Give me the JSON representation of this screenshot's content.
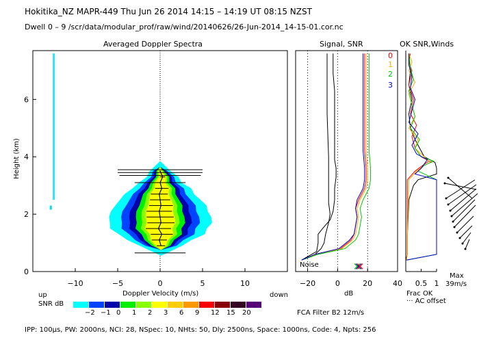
{
  "header": {
    "line1": "Hokitika_NZ   MAPR-449   Thu Jun 26 2014 14:15 – 14:19 UT 08:15 NZST",
    "line2": "Dwell   0 –  9   /scr/data/modular_prof/raw/wind/20140626/26-Jun-2014_14-15-01.cor.nc"
  },
  "panels": {
    "spectra_title": "Averaged Doppler Spectra",
    "signal_title": "Signal, SNR",
    "ok_title": "OK SNR,Winds"
  },
  "labels": {
    "y_axis": "Height (km)",
    "x_axis": "Doppler Velocity (m/s)",
    "up": "up",
    "down": "down",
    "db": "dB",
    "noise": "Noise",
    "frac_ok": "Frac OK",
    "ac_offset": "··· AC offset",
    "max": "Max",
    "max_value": "39m/s",
    "snr_db": "SNR dB",
    "fca": "FCA Filter B2 12m/s",
    "footer": "IPP: 100µs,  PW: 2000ns,  NCI:  28,  NSpec: 10,  NHts: 50,  Dly: 2500ns,  Space: 1000ns,  Code: 4,  Npts: 256"
  },
  "beam_legend": [
    {
      "label": "0",
      "color": "#ff0000"
    },
    {
      "label": "1",
      "color": "#ffaa00"
    },
    {
      "label": "2",
      "color": "#00cc00"
    },
    {
      "label": "3",
      "color": "#0000cc"
    }
  ],
  "snr_scale": {
    "colors": [
      "#00ffff",
      "#0044ff",
      "#0000aa",
      "#00ee00",
      "#88ff00",
      "#ffff00",
      "#ffcc00",
      "#ff9900",
      "#ff0000",
      "#880000",
      "#330022",
      "#550077"
    ],
    "labels": [
      "-2",
      "-1",
      "0",
      "1",
      "2",
      "3",
      "6",
      "9",
      "12",
      "15",
      "20"
    ]
  },
  "chart_data": [
    {
      "type": "heatmap",
      "title": "Averaged Doppler Spectra",
      "xlabel": "Doppler Velocity (m/s)",
      "ylabel": "Height (km)",
      "xlim": [
        -15,
        15
      ],
      "ylim": [
        0,
        7.7
      ],
      "x_ticks": [
        -10,
        -5,
        0,
        5,
        10
      ],
      "y_ticks": [
        0,
        2,
        4,
        6
      ],
      "mean_velocity_height": [
        0.9,
        1.1,
        1.3,
        1.5,
        1.7,
        1.9,
        2.1,
        2.3,
        2.5,
        2.7,
        2.9,
        3.1,
        3.3,
        3.5
      ],
      "mean_velocity": [
        0.1,
        -0.1,
        0.2,
        -0.2,
        0.1,
        0.0,
        -0.1,
        0.1,
        0.0,
        -0.1,
        0.2,
        0.0,
        0.3,
        0.0
      ],
      "core_halfwidth": [
        0.5,
        0.9,
        1.3,
        1.5,
        1.6,
        1.6,
        1.5,
        1.4,
        1.2,
        1.0,
        0.8,
        0.5,
        0.3,
        0.1
      ]
    },
    {
      "type": "line",
      "title": "Signal, SNR",
      "xlabel": "dB",
      "xlim": [
        -28,
        40
      ],
      "ylim": [
        0,
        7.7
      ],
      "x_ticks": [
        -20,
        0,
        20,
        40
      ],
      "series": [
        {
          "color": "#000000",
          "x": [
            -24,
            -14,
            -13,
            -13,
            -10,
            -5,
            -3,
            -2,
            -2,
            -1,
            -1,
            -2,
            -2,
            -2,
            -2,
            -2,
            -3,
            -3
          ],
          "y": [
            0.4,
            0.7,
            1.0,
            1.3,
            1.5,
            1.8,
            2.1,
            2.5,
            2.9,
            3.3,
            3.6,
            3.9,
            4.3,
            5.0,
            5.7,
            6.3,
            6.9,
            7.6
          ]
        },
        {
          "color": "#000000",
          "x": [
            -24,
            -15,
            -11,
            -9,
            -8,
            -6,
            -5,
            -6,
            -6,
            -6,
            -7,
            -7
          ],
          "y": [
            0.4,
            0.6,
            0.8,
            1.0,
            1.3,
            1.7,
            2.0,
            2.4,
            3.0,
            4.0,
            5.5,
            7.6
          ]
        },
        {
          "color": "#ff0000",
          "x": [
            -24,
            -15,
            2,
            9,
            11,
            12,
            13,
            12,
            14,
            18,
            19,
            19,
            18,
            18,
            18,
            18
          ],
          "y": [
            0.4,
            0.6,
            0.8,
            1.1,
            1.3,
            1.6,
            1.9,
            2.2,
            2.5,
            2.9,
            3.2,
            3.6,
            4.2,
            5.2,
            6.5,
            7.6
          ]
        },
        {
          "color": "#ffaa00",
          "x": [
            -24,
            -14,
            3,
            10,
            12,
            13,
            14,
            13,
            15,
            19,
            20,
            20,
            19,
            19,
            19,
            19
          ],
          "y": [
            0.4,
            0.6,
            0.8,
            1.1,
            1.3,
            1.6,
            1.9,
            2.2,
            2.5,
            2.9,
            3.2,
            3.6,
            4.2,
            5.2,
            6.5,
            7.6
          ]
        },
        {
          "color": "#00cc00",
          "x": [
            -24,
            -13,
            5,
            12,
            14,
            15,
            16,
            15,
            17,
            21,
            22,
            22,
            21,
            21,
            21,
            21
          ],
          "y": [
            0.4,
            0.6,
            0.8,
            1.1,
            1.3,
            1.6,
            1.9,
            2.2,
            2.5,
            2.9,
            3.2,
            3.6,
            4.2,
            5.2,
            6.5,
            7.6
          ]
        },
        {
          "color": "#0000cc",
          "x": [
            -24,
            -15,
            1,
            8,
            11,
            12,
            13,
            12,
            13,
            17,
            18,
            18,
            17,
            17,
            17,
            17
          ],
          "y": [
            0.4,
            0.6,
            0.8,
            1.1,
            1.3,
            1.6,
            1.9,
            2.2,
            2.5,
            2.9,
            3.2,
            3.6,
            4.2,
            5.2,
            6.5,
            7.6
          ]
        }
      ]
    },
    {
      "type": "line",
      "title": "OK SNR,Winds",
      "xlabel": "Frac OK",
      "xlim": [
        0,
        1
      ],
      "ylim": [
        0,
        7.7
      ],
      "x_ticks": [
        0.5,
        1
      ],
      "x_ticklabels": [
        "0.5",
        "1"
      ],
      "series": [
        {
          "color": "#000000",
          "x": [
            0.0,
            0.05,
            0.05,
            0.1,
            0.25,
            0.4,
            1.0,
            1.0,
            0.95,
            0.6,
            0.45,
            0.3,
            0.15,
            0.1,
            0.2,
            0.1,
            0.15,
            0.1
          ],
          "y": [
            0.4,
            0.6,
            1.2,
            2.5,
            3.0,
            3.2,
            3.4,
            3.6,
            3.8,
            4.0,
            4.3,
            4.6,
            5.0,
            5.5,
            6.0,
            6.5,
            7.0,
            7.6
          ]
        },
        {
          "color": "#ff0000",
          "x": [
            0.02,
            0.05,
            0.05,
            0.05,
            0.3,
            0.55,
            0.75,
            0.85,
            0.5,
            0.3,
            0.2,
            0.35,
            0.15,
            0.25,
            0.1,
            0.2,
            0.1,
            0.15
          ],
          "y": [
            0.4,
            0.6,
            1.2,
            3.2,
            3.5,
            3.7,
            3.85,
            3.8,
            4.0,
            4.3,
            4.7,
            5.1,
            5.5,
            6.0,
            6.5,
            7.0,
            7.3,
            7.6
          ]
        },
        {
          "color": "#ffaa00",
          "x": [
            0.02,
            0.05,
            0.05,
            0.1,
            0.35,
            0.6,
            0.8,
            0.6,
            0.3,
            0.4,
            0.1,
            0.3,
            0.2,
            0.1,
            0.3,
            0.1,
            0.2,
            0.1
          ],
          "y": [
            0.4,
            0.6,
            1.2,
            3.2,
            3.5,
            3.7,
            3.8,
            4.0,
            4.3,
            4.6,
            5.0,
            5.4,
            5.8,
            6.2,
            6.6,
            7.0,
            7.3,
            7.6
          ]
        },
        {
          "color": "#00cc00",
          "x": [
            0.02,
            1.0,
            1.0,
            1.0,
            0.4,
            0.6,
            0.9,
            0.5,
            0.3,
            0.45,
            0.15,
            0.3,
            0.2,
            0.1,
            0.25,
            0.15,
            0.1
          ],
          "y": [
            0.4,
            0.6,
            1.2,
            3.2,
            3.5,
            3.7,
            3.85,
            4.0,
            4.3,
            4.6,
            5.0,
            5.4,
            5.8,
            6.3,
            6.7,
            7.1,
            7.6
          ]
        },
        {
          "color": "#0000cc",
          "x": [
            0.02,
            1.0,
            1.0,
            1.0,
            0.3,
            0.5,
            0.7,
            0.35,
            0.2,
            0.4,
            0.1,
            0.2,
            0.3,
            0.15,
            0.2,
            0.1,
            0.1
          ],
          "y": [
            0.4,
            0.6,
            1.2,
            3.2,
            3.4,
            3.6,
            3.9,
            4.1,
            4.4,
            4.8,
            5.2,
            5.6,
            6.0,
            6.4,
            6.8,
            7.2,
            7.6
          ]
        }
      ]
    }
  ]
}
